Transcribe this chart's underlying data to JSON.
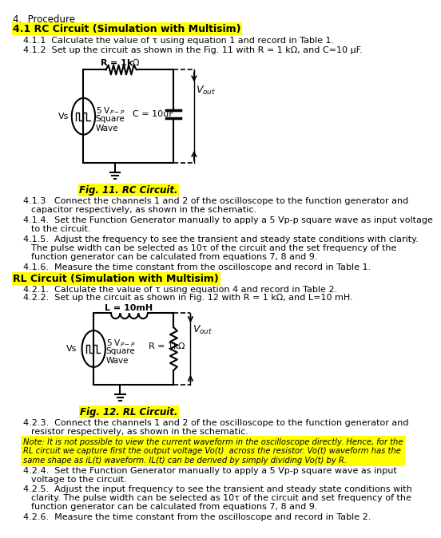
{
  "title_section": "4.  Procedure",
  "section_41_title": "4.1 RC Circuit (Simulation with Multisim)",
  "item_411": "4.1.1  Calculate the value of τ using equation 1 and record in Table 1.",
  "item_412": "4.1.2  Set up the circuit as shown in the Fig. 11 with R = 1 kΩ, and C=10 μF.",
  "fig11_caption": "Fig. 11. RC Circuit.",
  "item_413_1": "4.1.3   Connect the channels 1 and 2 of the oscilloscope to the function generator and",
  "item_413_2": "capacitor respectively, as shown in the schematic.",
  "item_414_1": "4.1.4.  Set the Function Generator manually to apply a 5 Vp-p square wave as input voltage",
  "item_414_2": "to the circuit.",
  "item_415_1": "4.1.5.  Adjust the frequency to see the transient and steady state conditions with clarity.",
  "item_415_2": "The pulse width can be selected as 10τ of the circuit and the set frequency of the",
  "item_415_3": "function generator can be calculated from equations 7, 8 and 9.",
  "item_416": "4.1.6.  Measure the time constant from the oscilloscope and record in Table 1.",
  "section_42_title": "RL Circuit (Simulation with Multisim)",
  "item_421": "4.2.1.  Calculate the value of τ using equation 4 and record in Table 2.",
  "item_422": "4.2.2.  Set up the circuit as shown in Fig. 12 with R = 1 kΩ, and L=10 mH.",
  "fig12_caption": "Fig. 12. RL Circuit.",
  "item_423_1": "4.2.3.  Connect the channels 1 and 2 of the oscilloscope to the function generator and",
  "item_423_2": "resistor respectively, as shown in the schematic.",
  "note_1": "Note: It is not possible to view the current waveform in the oscilloscope directly. Hence, for the",
  "note_2": "RL circuit we capture first the output voltage Vo(t)  across the resistor. Vo(t) waveform has the",
  "note_3": "same shape as iL(t) waveform. IL(t) can be derived by simply dividing Vo(t) by R.",
  "item_424_1": "4.2.4.  Set the Function Generator manually to apply a 5 Vp-p square wave as input",
  "item_424_2": "voltage to the circuit.",
  "item_425_1": "4.2.5.  Adjust the input frequency to see the transient and steady state conditions with",
  "item_425_2": "clarity. The pulse width can be selected as 10τ of the circuit and set frequency of the",
  "item_425_3": "function generator can be calculated from equations 7, 8 and 9.",
  "item_426": "4.2.6.  Measure the time constant from the oscilloscope and record in Table 2.",
  "highlight_color": "#FFFF00",
  "fig_caption_highlight": "#FFFF00"
}
